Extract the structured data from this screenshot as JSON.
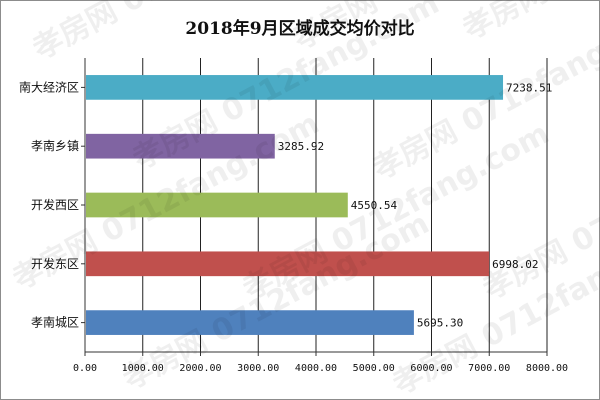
{
  "chart_data": {
    "type": "bar",
    "orientation": "horizontal",
    "title": "2018年9月区域成交均价对比",
    "categories": [
      "南大经济区",
      "孝南乡镇",
      "开发西区",
      "开发东区",
      "孝南城区"
    ],
    "values": [
      7238.51,
      3285.92,
      4550.54,
      6998.02,
      5695.3
    ],
    "value_labels": [
      "7238.51",
      "3285.92",
      "4550.54",
      "6998.02",
      "5695.30"
    ],
    "colors": [
      "#4bacc6",
      "#8064a2",
      "#9bbb59",
      "#c0504d",
      "#4f81bd"
    ],
    "xlim": [
      0,
      8000
    ],
    "xticks": [
      "0.00",
      "1000.00",
      "2000.00",
      "3000.00",
      "4000.00",
      "5000.00",
      "6000.00",
      "7000.00",
      "8000.00"
    ],
    "xlabel": "",
    "ylabel": "",
    "grid": "vertical",
    "legend": "none"
  },
  "watermark": "孝房网 0712fang.com"
}
